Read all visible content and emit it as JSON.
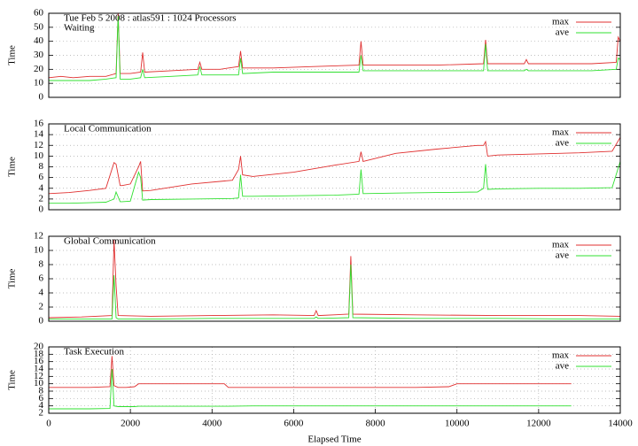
{
  "chart_data": [
    {
      "type": "line",
      "title": "Tue Feb 5 2008 : atlas591 : 1024 Processors",
      "subtitle": "Waiting",
      "ylabel": "Time",
      "x": [
        0,
        300,
        600,
        1000,
        1400,
        1650,
        1700,
        1750,
        2000,
        2250,
        2300,
        2350,
        3000,
        3650,
        3700,
        3750,
        4200,
        4650,
        4700,
        4750,
        5500,
        6500,
        7600,
        7650,
        7700,
        8500,
        9500,
        10650,
        10700,
        10750,
        11650,
        11700,
        11750,
        12500,
        13300,
        13900,
        13950,
        14000
      ],
      "series": [
        {
          "name": "max",
          "color": "#e03030",
          "values": [
            14,
            15,
            14,
            15,
            15,
            17,
            60,
            17,
            17,
            18,
            32,
            18,
            19,
            20,
            25,
            20,
            20,
            22,
            33,
            21,
            21,
            22,
            23,
            40,
            23,
            23,
            23,
            24,
            41,
            24,
            24,
            27,
            24,
            24,
            24,
            25,
            43,
            40
          ]
        },
        {
          "name": "ave",
          "color": "#30e030",
          "values": [
            12,
            12,
            12,
            12,
            13,
            14,
            58,
            13,
            13,
            14,
            20,
            14,
            15,
            16,
            22,
            16,
            16,
            16,
            28,
            17,
            18,
            18,
            18,
            30,
            19,
            19,
            19,
            19,
            38,
            19,
            19,
            20,
            19,
            19,
            19,
            20,
            28,
            27
          ]
        }
      ],
      "xlim": [
        0,
        14000
      ],
      "ylim": [
        0,
        60
      ],
      "yticks": [
        0,
        10,
        20,
        30,
        40,
        50,
        60
      ],
      "grid": true,
      "legend": "upper right"
    },
    {
      "type": "line",
      "title": "Local Communication",
      "ylabel": "Time",
      "x": [
        0,
        500,
        1000,
        1400,
        1600,
        1650,
        1750,
        1800,
        2000,
        2200,
        2250,
        2300,
        2500,
        3500,
        4500,
        4650,
        4700,
        4750,
        5000,
        6000,
        7000,
        7600,
        7650,
        7700,
        8500,
        9500,
        10500,
        10650,
        10700,
        10750,
        11000,
        12000,
        13000,
        13800,
        14000
      ],
      "series": [
        {
          "name": "max",
          "color": "#e03030",
          "values": [
            3,
            3.2,
            3.6,
            4,
            8.8,
            8.5,
            4.5,
            4.5,
            4.8,
            8,
            9,
            3.5,
            3.6,
            4.8,
            5.5,
            7.5,
            10,
            6.5,
            6.2,
            7,
            8.3,
            9,
            10.8,
            9,
            10.5,
            11.3,
            12,
            12,
            12.7,
            10,
            10.2,
            10.4,
            10.6,
            10.9,
            13.5
          ]
        },
        {
          "name": "ave",
          "color": "#30e030",
          "values": [
            1.2,
            1.2,
            1.3,
            1.4,
            2,
            3.3,
            1.5,
            1.5,
            1.6,
            7,
            6,
            1.8,
            1.9,
            2,
            2.1,
            2.2,
            6.5,
            2.5,
            2.5,
            2.6,
            2.7,
            2.9,
            7.5,
            3,
            3.1,
            3.2,
            3.3,
            4,
            8.5,
            3.8,
            3.9,
            4,
            4,
            4.1,
            9
          ]
        }
      ],
      "xlim": [
        0,
        14000
      ],
      "ylim": [
        0,
        16
      ],
      "yticks": [
        0,
        2,
        4,
        6,
        8,
        10,
        12,
        14,
        16
      ],
      "grid": true,
      "legend": "upper right"
    },
    {
      "type": "line",
      "title": "Global Communication",
      "ylabel": "Time",
      "x": [
        0,
        800,
        1550,
        1600,
        1650,
        1700,
        2500,
        4000,
        5500,
        6500,
        6550,
        6600,
        7350,
        7400,
        7450,
        9000,
        11000,
        13000,
        14000
      ],
      "series": [
        {
          "name": "max",
          "color": "#e03030",
          "values": [
            0.5,
            0.6,
            0.8,
            11.5,
            5,
            0.8,
            0.7,
            0.8,
            0.9,
            0.8,
            1.5,
            0.8,
            1,
            9.2,
            1,
            0.9,
            0.8,
            0.8,
            0.7
          ]
        },
        {
          "name": "ave",
          "color": "#30e030",
          "values": [
            0.3,
            0.3,
            0.3,
            6.5,
            0.5,
            0.3,
            0.3,
            0.4,
            0.4,
            0.4,
            0.6,
            0.4,
            0.5,
            8,
            0.5,
            0.4,
            0.4,
            0.3,
            0.3
          ]
        }
      ],
      "xlim": [
        0,
        14000
      ],
      "ylim": [
        0,
        12
      ],
      "yticks": [
        0,
        2,
        4,
        6,
        8,
        10,
        12
      ],
      "grid": true,
      "legend": "upper right"
    },
    {
      "type": "line",
      "title": "Task Execution",
      "ylabel": "Time",
      "xlabel": "Elapsed Time",
      "x": [
        0,
        1000,
        1500,
        1550,
        1600,
        1700,
        1900,
        2100,
        2200,
        4300,
        4400,
        5000,
        7000,
        9000,
        9800,
        10000,
        12000,
        12800
      ],
      "series": [
        {
          "name": "max",
          "color": "#e03030",
          "values": [
            9,
            9,
            9.2,
            17.5,
            9.5,
            9,
            9,
            9.2,
            10,
            10,
            9,
            9,
            9,
            9,
            9.2,
            10,
            10,
            10
          ]
        },
        {
          "name": "ave",
          "color": "#30e030",
          "values": [
            3.2,
            3.2,
            3.3,
            14,
            4,
            3.8,
            3.8,
            3.8,
            3.9,
            3.9,
            3.9,
            4,
            4,
            4,
            4,
            4,
            4,
            4
          ]
        }
      ],
      "xlim": [
        0,
        14000
      ],
      "xticks": [
        0,
        2000,
        4000,
        6000,
        8000,
        10000,
        12000,
        14000
      ],
      "ylim": [
        2,
        20
      ],
      "yticks": [
        2,
        4,
        6,
        8,
        10,
        12,
        14,
        16,
        18,
        20
      ],
      "grid": true,
      "xgrid": true,
      "legend": "upper right"
    }
  ]
}
